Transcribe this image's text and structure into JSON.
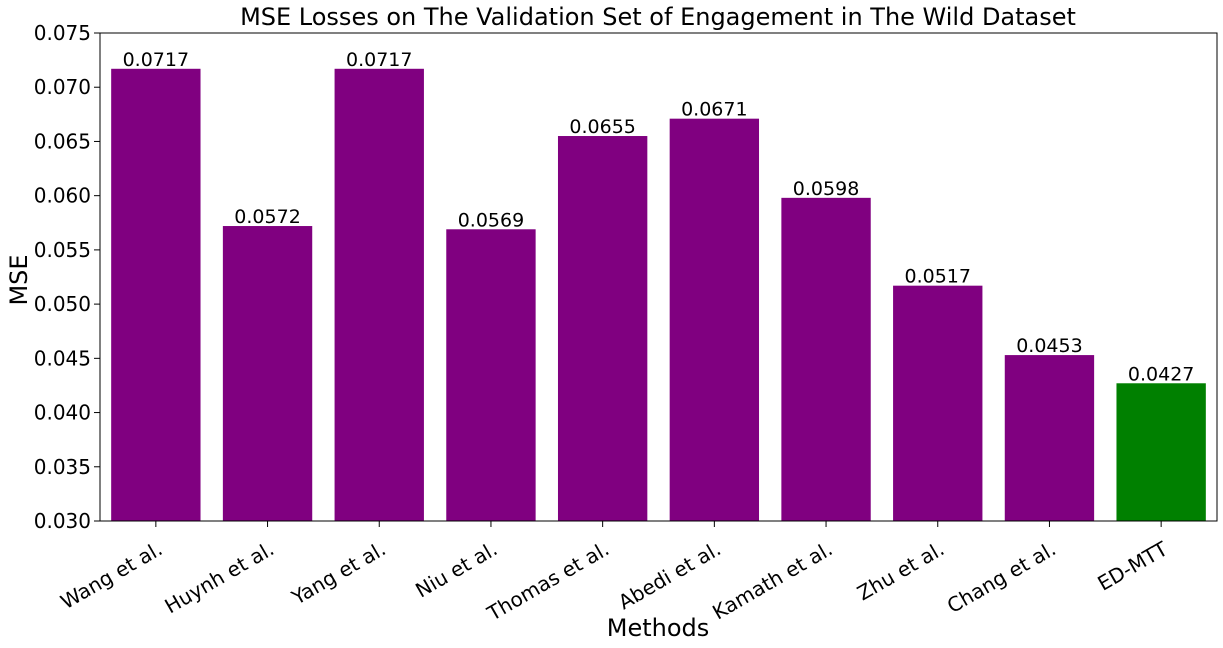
{
  "chart_data": {
    "type": "bar",
    "title": "MSE Losses on The Validation Set of Engagement in The Wild Dataset",
    "xlabel": "Methods",
    "ylabel": "MSE",
    "categories": [
      "Wang et al.",
      "Huynh et al.",
      "Yang et al.",
      "Niu et al.",
      "Thomas et al.",
      "Abedi et al.",
      "Kamath et al.",
      "Zhu et al.",
      "Chang et al.",
      "ED-MTT"
    ],
    "values": [
      0.0717,
      0.0572,
      0.0717,
      0.0569,
      0.0655,
      0.0671,
      0.0598,
      0.0517,
      0.0453,
      0.0427
    ],
    "value_labels": [
      "0.0717",
      "0.0572",
      "0.0717",
      "0.0569",
      "0.0655",
      "0.0671",
      "0.0598",
      "0.0517",
      "0.0453",
      "0.0427"
    ],
    "ylim": [
      0.03,
      0.075
    ],
    "yticks": [
      "0.030",
      "0.035",
      "0.040",
      "0.045",
      "0.050",
      "0.055",
      "0.060",
      "0.065",
      "0.070",
      "0.075"
    ],
    "grid": false,
    "colors": {
      "default": "#800080",
      "highlight": "#008000"
    },
    "highlight_category": "ED-MTT"
  }
}
